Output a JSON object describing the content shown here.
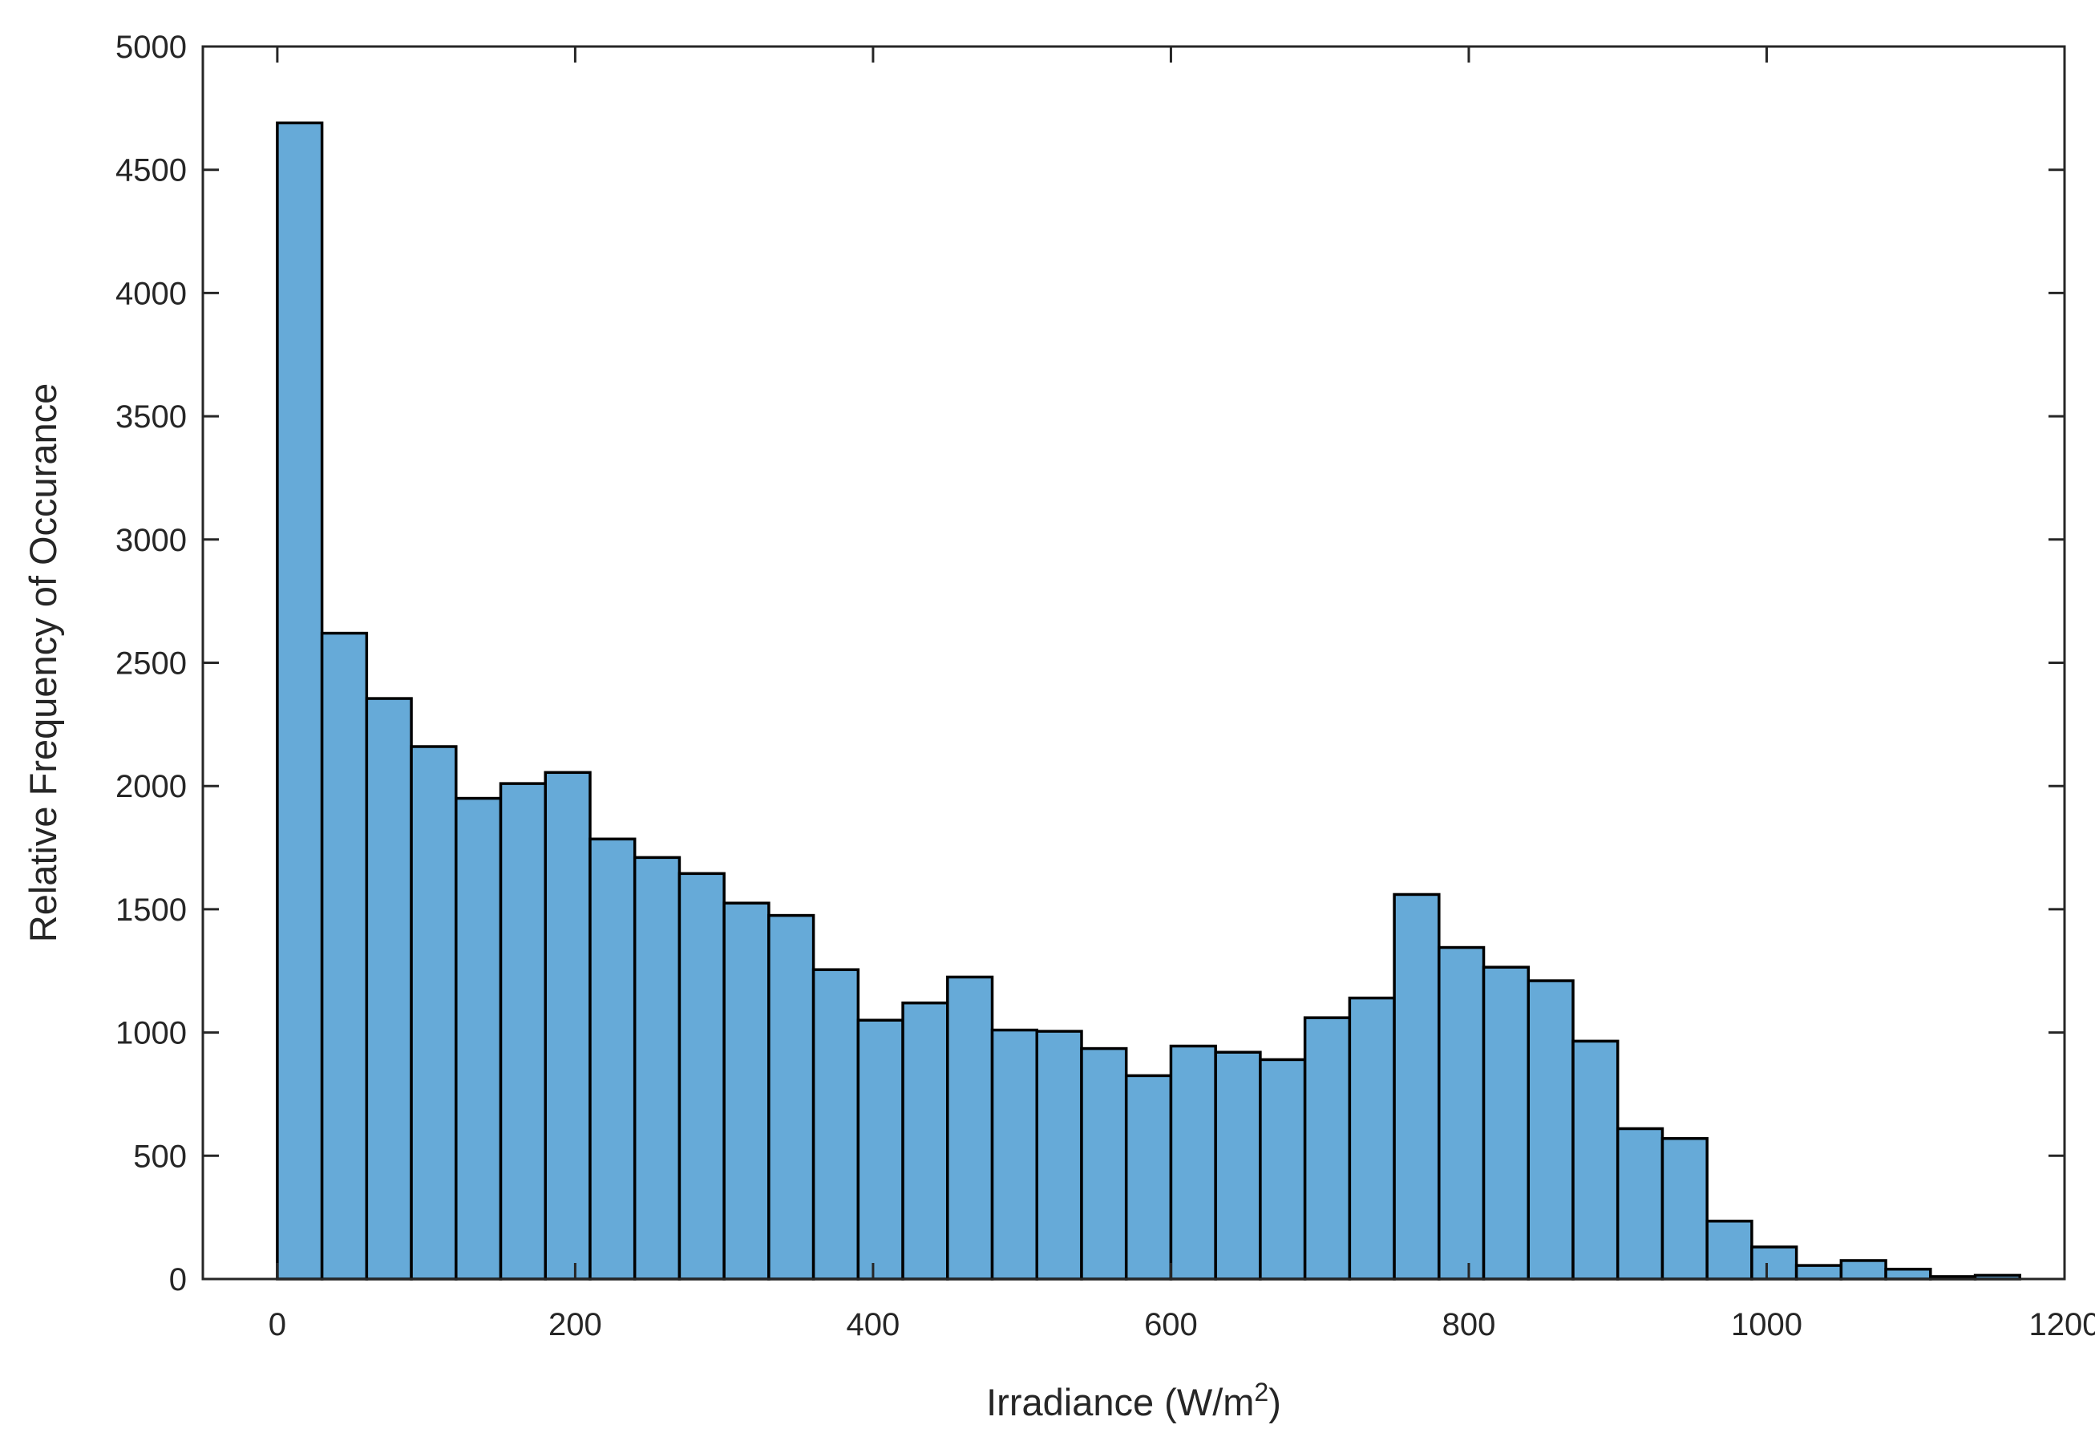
{
  "chart_data": {
    "type": "bar",
    "title": "",
    "xlabel": "Irradiance (W/m",
    "xlabel_sup": "2",
    "xlabel_close": ")",
    "ylabel": "Relative Frequency of Occurance",
    "xlim": [
      -50,
      1200
    ],
    "ylim": [
      0,
      5000
    ],
    "xticks": [
      0,
      200,
      400,
      600,
      800,
      1000,
      1200
    ],
    "yticks": [
      0,
      500,
      1000,
      1500,
      2000,
      2500,
      3000,
      3500,
      4000,
      4500,
      5000
    ],
    "bin_edges": [
      0,
      30,
      60,
      90,
      120,
      150,
      180,
      210,
      240,
      270,
      300,
      330,
      360,
      390,
      420,
      450,
      480,
      510,
      540,
      570,
      600,
      630,
      660,
      690,
      720,
      750,
      780,
      810,
      840,
      870,
      900,
      930,
      960,
      990,
      1020,
      1050,
      1080,
      1110,
      1140,
      1170
    ],
    "values": [
      4690,
      2620,
      2355,
      2160,
      1950,
      2010,
      2055,
      1785,
      1710,
      1645,
      1525,
      1475,
      1255,
      1050,
      1120,
      1225,
      1010,
      1005,
      935,
      825,
      945,
      920,
      890,
      1060,
      1140,
      1560,
      1345,
      1265,
      1210,
      965,
      610,
      570,
      235,
      130,
      55,
      75,
      40,
      10,
      15
    ],
    "bar_color": "#66aad8",
    "edge_color": "#000000",
    "grid": false,
    "legend": "none"
  }
}
